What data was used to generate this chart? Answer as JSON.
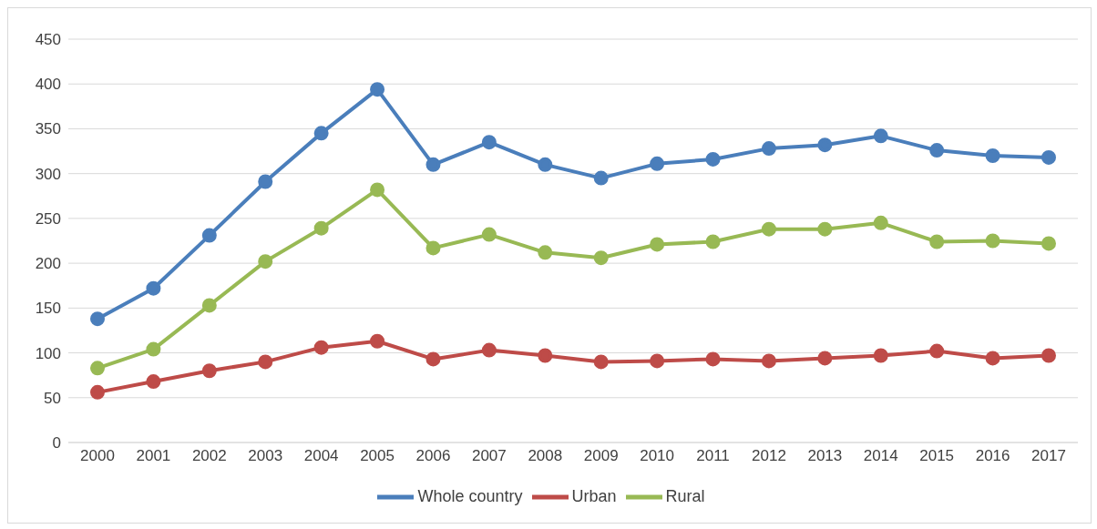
{
  "chart_data": {
    "type": "line",
    "categories": [
      "2000",
      "2001",
      "2002",
      "2003",
      "2004",
      "2005",
      "2006",
      "2007",
      "2008",
      "2009",
      "2010",
      "2011",
      "2012",
      "2013",
      "2014",
      "2015",
      "2016",
      "2017"
    ],
    "series": [
      {
        "name": "Whole country",
        "color": "#4a7ebb",
        "values": [
          138,
          172,
          231,
          291,
          345,
          394,
          310,
          335,
          310,
          295,
          311,
          316,
          328,
          332,
          342,
          326,
          320,
          318
        ]
      },
      {
        "name": "Urban",
        "color": "#be4b48",
        "values": [
          56,
          68,
          80,
          90,
          106,
          113,
          93,
          103,
          97,
          90,
          91,
          93,
          91,
          94,
          97,
          102,
          94,
          97
        ]
      },
      {
        "name": "Rural",
        "color": "#98b954",
        "values": [
          83,
          104,
          153,
          202,
          239,
          282,
          217,
          232,
          212,
          206,
          221,
          224,
          238,
          238,
          245,
          224,
          225,
          222
        ]
      }
    ],
    "ylim": [
      0,
      450
    ],
    "yticks": [
      0,
      50,
      100,
      150,
      200,
      250,
      300,
      350,
      400,
      450
    ],
    "grid": "y",
    "legend": "bottom",
    "marker": "circle",
    "line_style": "solid"
  }
}
